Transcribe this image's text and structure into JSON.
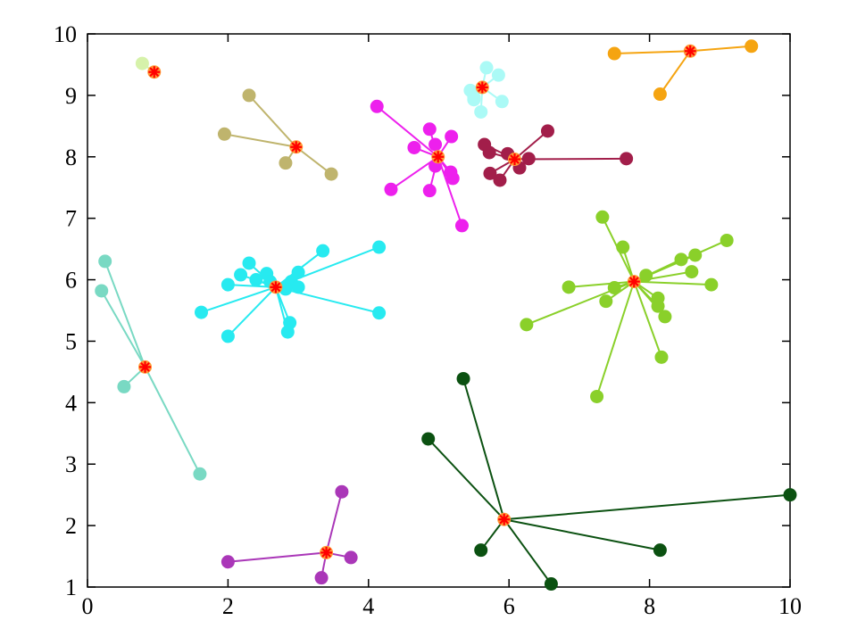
{
  "chart_data": {
    "type": "scatter",
    "title": "",
    "xlabel": "",
    "ylabel": "",
    "xlim": [
      0,
      10
    ],
    "ylim": [
      1,
      10
    ],
    "x_ticks": [
      "0",
      "2",
      "4",
      "6",
      "8",
      "10"
    ],
    "y_ticks": [
      "1",
      "2",
      "3",
      "4",
      "5",
      "6",
      "7",
      "8",
      "9",
      "10"
    ],
    "grid": false,
    "legend": false,
    "centroid_marker": {
      "shape": "asterisk",
      "color": "#ff0000",
      "fill": "#ff9b37"
    },
    "clusters": [
      {
        "color": "#d6f2aa",
        "center": [
          0.95,
          9.38
        ],
        "points": [
          [
            0.78,
            9.52
          ]
        ]
      },
      {
        "color": "#abfaf6",
        "center": [
          5.62,
          9.13
        ],
        "points": [
          [
            5.68,
            9.45
          ],
          [
            5.85,
            9.33
          ],
          [
            5.45,
            9.08
          ],
          [
            5.5,
            8.97
          ],
          [
            5.5,
            8.93
          ],
          [
            5.6,
            8.73
          ],
          [
            5.9,
            8.9
          ]
        ]
      },
      {
        "color": "#f5a411",
        "center": [
          8.58,
          9.72
        ],
        "points": [
          [
            7.5,
            9.68
          ],
          [
            9.45,
            9.8
          ],
          [
            8.15,
            9.02
          ]
        ]
      },
      {
        "color": "#bfb46d",
        "center": [
          2.97,
          8.16
        ],
        "points": [
          [
            2.3,
            9.0
          ],
          [
            1.95,
            8.37
          ],
          [
            2.82,
            7.9
          ],
          [
            3.47,
            7.72
          ]
        ]
      },
      {
        "color": "#ed20ed",
        "center": [
          4.99,
          8.0
        ],
        "points": [
          [
            4.12,
            8.82
          ],
          [
            4.87,
            8.45
          ],
          [
            4.95,
            8.2
          ],
          [
            5.18,
            8.33
          ],
          [
            4.65,
            8.15
          ],
          [
            4.95,
            7.85
          ],
          [
            5.17,
            7.75
          ],
          [
            5.2,
            7.65
          ],
          [
            4.32,
            7.47
          ],
          [
            4.87,
            7.45
          ],
          [
            5.33,
            6.88
          ]
        ]
      },
      {
        "color": "#a21e4a",
        "center": [
          6.08,
          7.96
        ],
        "points": [
          [
            5.65,
            8.2
          ],
          [
            5.72,
            8.07
          ],
          [
            5.98,
            8.05
          ],
          [
            6.28,
            7.97
          ],
          [
            6.55,
            8.42
          ],
          [
            7.67,
            7.97
          ],
          [
            6.15,
            7.82
          ],
          [
            5.73,
            7.73
          ],
          [
            5.87,
            7.62
          ]
        ]
      },
      {
        "color": "#27eaf0",
        "center": [
          2.68,
          5.88
        ],
        "points": [
          [
            2.3,
            6.27
          ],
          [
            2.18,
            6.08
          ],
          [
            2.55,
            6.1
          ],
          [
            2.4,
            6.0
          ],
          [
            2.6,
            5.97
          ],
          [
            2.0,
            5.92
          ],
          [
            2.9,
            5.97
          ],
          [
            3.0,
            6.12
          ],
          [
            3.0,
            5.88
          ],
          [
            2.82,
            5.85
          ],
          [
            3.35,
            6.47
          ],
          [
            4.15,
            6.53
          ],
          [
            1.62,
            5.47
          ],
          [
            2.0,
            5.08
          ],
          [
            2.88,
            5.3
          ],
          [
            2.85,
            5.15
          ],
          [
            4.15,
            5.46
          ]
        ]
      },
      {
        "color": "#79d9c3",
        "center": [
          0.82,
          4.58
        ],
        "points": [
          [
            0.25,
            6.3
          ],
          [
            0.2,
            5.82
          ],
          [
            0.52,
            4.26
          ],
          [
            1.6,
            2.84
          ]
        ]
      },
      {
        "color": "#8ad02a",
        "center": [
          7.78,
          5.97
        ],
        "points": [
          [
            7.33,
            7.02
          ],
          [
            7.62,
            6.53
          ],
          [
            9.1,
            6.64
          ],
          [
            8.65,
            6.4
          ],
          [
            8.45,
            6.33
          ],
          [
            8.6,
            6.13
          ],
          [
            7.95,
            6.07
          ],
          [
            6.85,
            5.88
          ],
          [
            7.5,
            5.87
          ],
          [
            8.88,
            5.92
          ],
          [
            7.38,
            5.65
          ],
          [
            8.12,
            5.7
          ],
          [
            8.12,
            5.57
          ],
          [
            8.22,
            5.4
          ],
          [
            6.25,
            5.27
          ],
          [
            8.17,
            4.74
          ],
          [
            7.25,
            4.1
          ]
        ]
      },
      {
        "color": "#0b5111",
        "center": [
          5.93,
          2.1
        ],
        "points": [
          [
            5.35,
            4.39
          ],
          [
            4.85,
            3.41
          ],
          [
            10.0,
            2.5
          ],
          [
            5.6,
            1.6
          ],
          [
            8.15,
            1.6
          ],
          [
            6.6,
            1.05
          ]
        ]
      },
      {
        "color": "#aa37b8",
        "center": [
          3.4,
          1.56
        ],
        "points": [
          [
            3.62,
            2.55
          ],
          [
            2.0,
            1.41
          ],
          [
            3.75,
            1.48
          ],
          [
            3.33,
            1.15
          ]
        ]
      }
    ]
  }
}
